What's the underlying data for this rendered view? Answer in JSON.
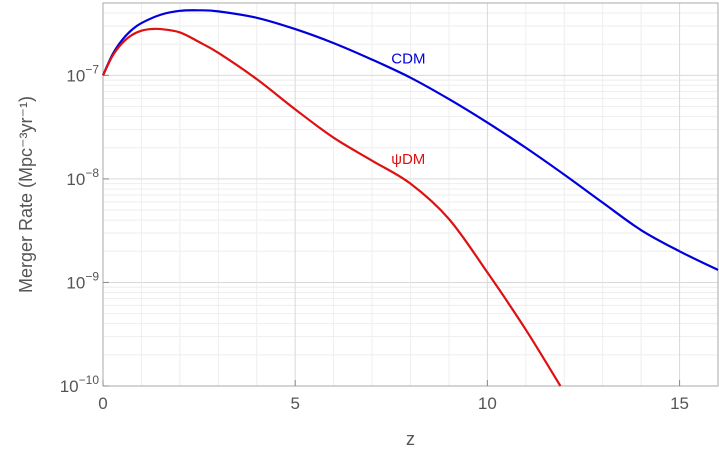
{
  "chart_data": {
    "type": "line",
    "xlabel": "z",
    "ylabel": "Merger Rate (Mpc⁻³yr⁻¹)",
    "xlim": [
      0,
      16
    ],
    "ylim": [
      1e-10,
      5e-07
    ],
    "y_scale": "log",
    "grid": true,
    "x_ticks": [
      {
        "value": 0,
        "label": "0"
      },
      {
        "value": 5,
        "label": "5"
      },
      {
        "value": 10,
        "label": "10"
      },
      {
        "value": 15,
        "label": "15"
      }
    ],
    "y_ticks": [
      {
        "value": 1e-10,
        "base": "10",
        "exp": "−10"
      },
      {
        "value": 1e-09,
        "base": "10",
        "exp": "−9"
      },
      {
        "value": 1e-08,
        "base": "10",
        "exp": "−8"
      },
      {
        "value": 1e-07,
        "base": "10",
        "exp": "−7"
      }
    ],
    "series": [
      {
        "name": "CDM",
        "color": "#0000dd",
        "label_pos": [
          7.5,
          1.3e-07
        ],
        "x": [
          0,
          0.25,
          0.5,
          0.75,
          1,
          1.5,
          2,
          2.5,
          3,
          4,
          5,
          6,
          7,
          8,
          9,
          10,
          11,
          12,
          13,
          14,
          15,
          16
        ],
        "y": [
          1e-07,
          1.6e-07,
          2.2e-07,
          2.75e-07,
          3.2e-07,
          3.85e-07,
          4.2e-07,
          4.25e-07,
          4.15e-07,
          3.6e-07,
          2.8e-07,
          2.05e-07,
          1.42e-07,
          9.5e-08,
          5.9e-08,
          3.5e-08,
          2e-08,
          1.1e-08,
          5.9e-09,
          3.2e-09,
          2e-09,
          1.32e-09
        ]
      },
      {
        "name": "ψDM",
        "color": "#dd1111",
        "label_pos": [
          7.5,
          1.4e-08
        ],
        "x": [
          0,
          0.25,
          0.5,
          0.75,
          1,
          1.25,
          1.5,
          2,
          2.5,
          3,
          4,
          5,
          6,
          7,
          8,
          9,
          10,
          11,
          11.9
        ],
        "y": [
          1e-07,
          1.55e-07,
          2.05e-07,
          2.45e-07,
          2.7e-07,
          2.8e-07,
          2.8e-07,
          2.6e-07,
          2.1e-07,
          1.65e-07,
          9.2e-08,
          4.7e-08,
          2.5e-08,
          1.5e-08,
          9e-09,
          4.1e-09,
          1.25e-09,
          3.5e-10,
          1e-10
        ]
      }
    ]
  }
}
